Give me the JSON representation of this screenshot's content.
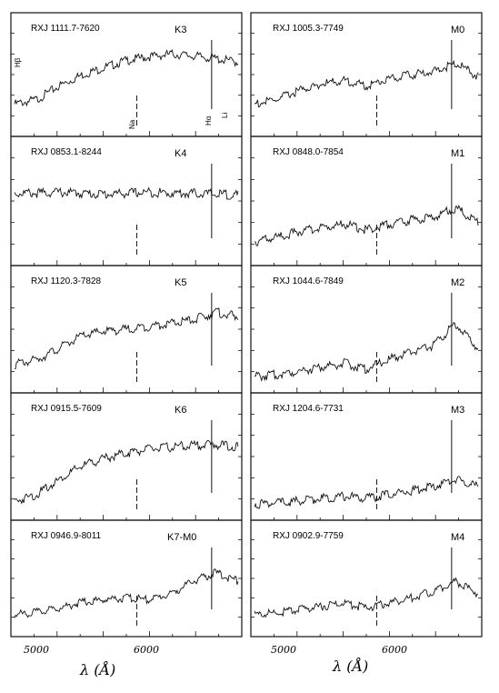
{
  "chart_data": [
    {
      "type": "line",
      "label": "RXJ 1111.7-7620",
      "spectral_type": "K3",
      "annotations": [
        "Hβ",
        "Na",
        "Hα",
        "Li"
      ],
      "x_ticks": [
        "5000",
        "6000"
      ],
      "x": [
        4800,
        5000,
        5200,
        5400,
        5600,
        5800,
        6000,
        6200,
        6400,
        6600,
        6800
      ],
      "y": [
        0.3,
        0.35,
        0.5,
        0.62,
        0.7,
        0.78,
        0.82,
        0.85,
        0.83,
        0.8,
        0.76
      ]
    },
    {
      "type": "line",
      "label": "RXJ 0853.1-8244",
      "spectral_type": "K4",
      "x_ticks": [
        "5000",
        "6000"
      ],
      "x": [
        4800,
        5000,
        5200,
        5400,
        5600,
        5800,
        6000,
        6200,
        6400,
        6600,
        6800
      ],
      "y": [
        0.7,
        0.7,
        0.71,
        0.7,
        0.69,
        0.7,
        0.71,
        0.7,
        0.7,
        0.69,
        0.68
      ]
    },
    {
      "type": "line",
      "label": "RXJ 1120.3-7828",
      "spectral_type": "K5",
      "x_ticks": [
        "5000",
        "6000"
      ],
      "x": [
        4800,
        5000,
        5200,
        5400,
        5600,
        5800,
        6000,
        6200,
        6400,
        6600,
        6800
      ],
      "y": [
        0.25,
        0.3,
        0.42,
        0.55,
        0.6,
        0.62,
        0.65,
        0.68,
        0.72,
        0.8,
        0.75
      ]
    },
    {
      "type": "line",
      "label": "RXJ 0915.5-7609",
      "spectral_type": "K6",
      "x_ticks": [
        "5000",
        "6000"
      ],
      "x": [
        4800,
        5000,
        5200,
        5400,
        5600,
        5800,
        6000,
        6200,
        6400,
        6600,
        6800
      ],
      "y": [
        0.15,
        0.22,
        0.38,
        0.52,
        0.6,
        0.66,
        0.7,
        0.72,
        0.74,
        0.75,
        0.72
      ]
    },
    {
      "type": "line",
      "label": "RXJ 0946.9-8011",
      "spectral_type": "K7-M0",
      "x_ticks": [
        "5000",
        "6000"
      ],
      "x": [
        4800,
        5000,
        5200,
        5400,
        5600,
        5800,
        6000,
        6200,
        6400,
        6600,
        6800
      ],
      "y": [
        0.2,
        0.23,
        0.28,
        0.35,
        0.38,
        0.4,
        0.38,
        0.45,
        0.6,
        0.7,
        0.6
      ]
    },
    {
      "type": "line",
      "label": "RXJ 1005.3-7749",
      "spectral_type": "M0",
      "x_ticks": [
        "5000",
        "6000"
      ],
      "x": [
        4800,
        5000,
        5200,
        5400,
        5600,
        5800,
        6000,
        6200,
        6400,
        6600,
        6800
      ],
      "y": [
        0.3,
        0.35,
        0.45,
        0.52,
        0.56,
        0.5,
        0.58,
        0.62,
        0.66,
        0.75,
        0.6
      ]
    },
    {
      "type": "line",
      "label": "RXJ 0848.0-7854",
      "spectral_type": "M1",
      "x_ticks": [
        "5000",
        "6000"
      ],
      "x": [
        4800,
        5000,
        5200,
        5400,
        5600,
        5800,
        6000,
        6200,
        6400,
        6600,
        6800
      ],
      "y": [
        0.2,
        0.24,
        0.3,
        0.34,
        0.38,
        0.32,
        0.38,
        0.42,
        0.45,
        0.55,
        0.4
      ]
    },
    {
      "type": "line",
      "label": "RXJ 1044.6-7849",
      "spectral_type": "M2",
      "x_ticks": [
        "5000",
        "6000"
      ],
      "x": [
        4800,
        5000,
        5200,
        5400,
        5600,
        5800,
        6000,
        6200,
        6400,
        6600,
        6800
      ],
      "y": [
        0.12,
        0.14,
        0.18,
        0.22,
        0.26,
        0.2,
        0.3,
        0.38,
        0.45,
        0.68,
        0.42
      ]
    },
    {
      "type": "line",
      "label": "RXJ 1204.6-7731",
      "spectral_type": "M3",
      "x_ticks": [
        "5000",
        "6000"
      ],
      "x": [
        4800,
        5000,
        5200,
        5400,
        5600,
        5800,
        6000,
        6200,
        6400,
        6600,
        6800
      ],
      "y": [
        0.12,
        0.13,
        0.15,
        0.18,
        0.2,
        0.18,
        0.22,
        0.26,
        0.3,
        0.38,
        0.3
      ]
    },
    {
      "type": "line",
      "label": "RXJ 0902.9-7759",
      "spectral_type": "M4",
      "x_ticks": [
        "5000",
        "6000"
      ],
      "x": [
        4800,
        5000,
        5200,
        5400,
        5600,
        5800,
        6000,
        6200,
        6400,
        6600,
        6800
      ],
      "y": [
        0.2,
        0.22,
        0.26,
        0.3,
        0.34,
        0.28,
        0.34,
        0.4,
        0.48,
        0.6,
        0.45
      ]
    }
  ],
  "axes": {
    "xlabel_left": "λ (Å)",
    "xlabel_right": "λ (Å)"
  }
}
